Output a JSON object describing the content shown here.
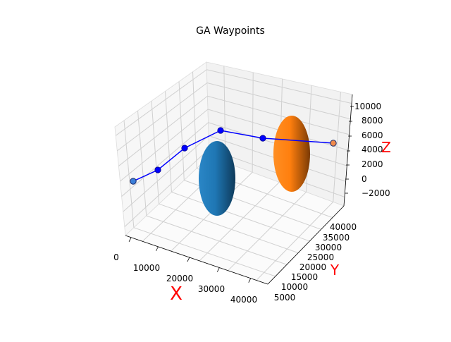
{
  "chart_data": {
    "type": "scatter",
    "title": "GA Waypoints",
    "xlabel": "X",
    "ylabel": "Y",
    "zlabel": "Z",
    "x_ticks": [
      "0",
      "10000",
      "20000",
      "30000",
      "40000"
    ],
    "y_ticks": [
      "5000",
      "10000",
      "15000",
      "20000",
      "25000",
      "30000",
      "35000",
      "40000"
    ],
    "z_ticks": [
      "−2000",
      "0",
      "2000",
      "4000",
      "6000",
      "8000",
      "10000"
    ],
    "xlim": [
      0,
      42000
    ],
    "ylim": [
      3000,
      42000
    ],
    "zlim": [
      -3500,
      11000
    ],
    "grid": true,
    "series": [
      {
        "kind": "path",
        "color": "#0000ff",
        "points": [
          {
            "x": 0,
            "y": 5000,
            "z": 0
          },
          {
            "x": 5000,
            "y": 8000,
            "z": 1500
          },
          {
            "x": 10000,
            "y": 12000,
            "z": 3500
          },
          {
            "x": 15000,
            "y": 20000,
            "z": 5000
          },
          {
            "x": 26000,
            "y": 30000,
            "z": 5000
          },
          {
            "x": 38000,
            "y": 38000,
            "z": 4500
          }
        ]
      }
    ],
    "endpoints": [
      {
        "role": "start",
        "x": 0,
        "y": 5000,
        "z": 0,
        "color": "#3b7fd9"
      },
      {
        "role": "goal",
        "x": 38000,
        "y": 38000,
        "z": 4500,
        "color": "#f08a4b"
      }
    ],
    "obstacles": [
      {
        "shape": "ellipsoid",
        "color": "#1f77b4",
        "cx": 20000,
        "cy": 18000,
        "cz": 2000
      },
      {
        "shape": "ellipsoid",
        "color": "#ff7f0e",
        "cx": 30000,
        "cy": 32000,
        "cz": 5000
      }
    ]
  }
}
